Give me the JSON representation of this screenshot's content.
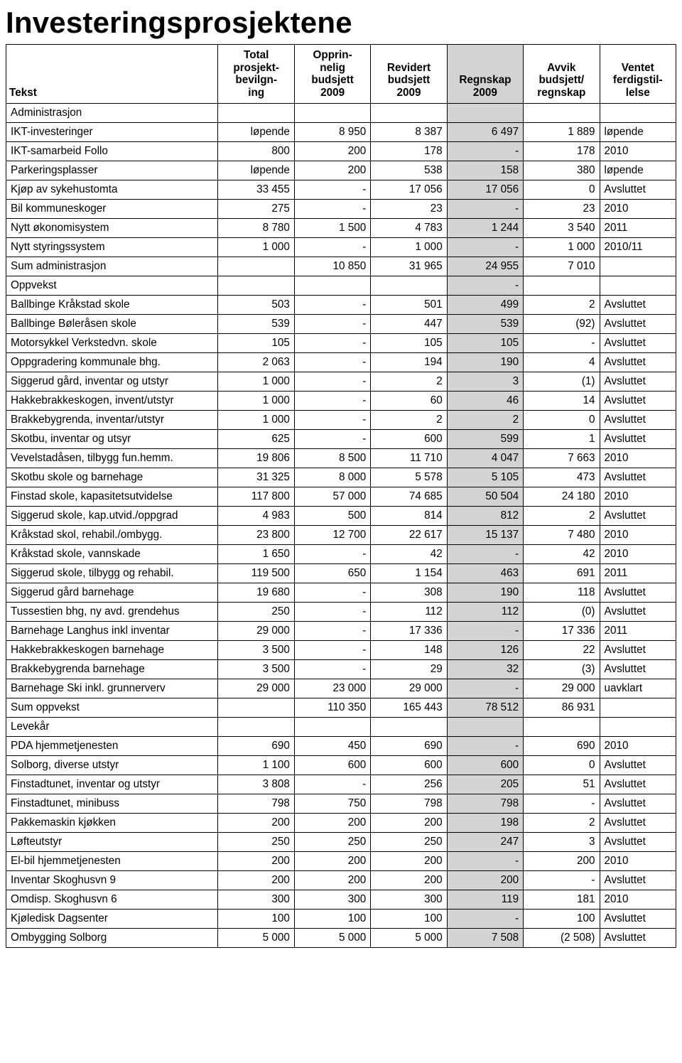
{
  "title": "Investeringsprosjektene",
  "table": {
    "background_color": "#ffffff",
    "highlight_color": "#d3d3d3",
    "border_color": "#000000",
    "font_family": "Arial",
    "font_size_pt": 11,
    "header_font_size_pt": 11,
    "title_font_size_pt": 32,
    "columns": [
      {
        "key": "tekst",
        "label": "Tekst",
        "align": "left"
      },
      {
        "key": "total",
        "label": "Total prosjekt-bevilgn-ing",
        "align": "right"
      },
      {
        "key": "oppr",
        "label": "Opprin-nelig budsjett 2009",
        "align": "right"
      },
      {
        "key": "rev",
        "label": "Revidert budsjett 2009",
        "align": "right"
      },
      {
        "key": "regn",
        "label": "Regnskap 2009",
        "align": "right",
        "highlight": true
      },
      {
        "key": "avvik",
        "label": "Avvik budsjett/ regnskap",
        "align": "right"
      },
      {
        "key": "ferdig",
        "label": "Ventet ferdigstil-lelse",
        "align": "left"
      }
    ],
    "sections": [
      {
        "name": "Administrasjon",
        "rows": [
          {
            "tekst": "IKT-investeringer",
            "total": "løpende",
            "oppr": "8 950",
            "rev": "8 387",
            "regn": "6 497",
            "avvik": "1 889",
            "ferdig": "løpende"
          },
          {
            "tekst": "IKT-samarbeid Follo",
            "total": "800",
            "oppr": "200",
            "rev": "178",
            "regn": "-",
            "avvik": "178",
            "ferdig": "2010"
          },
          {
            "tekst": "Parkeringsplasser",
            "total": "løpende",
            "oppr": "200",
            "rev": "538",
            "regn": "158",
            "avvik": "380",
            "ferdig": "løpende"
          },
          {
            "tekst": "Kjøp av sykehustomta",
            "total": "33 455",
            "oppr": "-",
            "rev": "17 056",
            "regn": "17 056",
            "avvik": "0",
            "ferdig": "Avsluttet"
          },
          {
            "tekst": "Bil kommuneskoger",
            "total": "275",
            "oppr": "-",
            "rev": "23",
            "regn": "-",
            "avvik": "23",
            "ferdig": "2010"
          },
          {
            "tekst": "Nytt økonomisystem",
            "total": "8 780",
            "oppr": "1 500",
            "rev": "4 783",
            "regn": "1 244",
            "avvik": "3 540",
            "ferdig": "2011"
          },
          {
            "tekst": "Nytt styringssystem",
            "total": "1 000",
            "oppr": "-",
            "rev": "1 000",
            "regn": "-",
            "avvik": "1 000",
            "ferdig": "2010/11"
          }
        ],
        "summary": {
          "tekst": "Sum administrasjon",
          "total": "",
          "oppr": "10 850",
          "rev": "31 965",
          "regn": "24 955",
          "avvik": "7 010",
          "ferdig": ""
        }
      },
      {
        "name": "Oppvekst",
        "name_regn_dash": true,
        "rows": [
          {
            "tekst": "Ballbinge Kråkstad skole",
            "total": "503",
            "oppr": "-",
            "rev": "501",
            "regn": "499",
            "avvik": "2",
            "ferdig": "Avsluttet"
          },
          {
            "tekst": "Ballbinge Bøleråsen skole",
            "total": "539",
            "oppr": "-",
            "rev": "447",
            "regn": "539",
            "avvik": "(92)",
            "ferdig": "Avsluttet"
          },
          {
            "tekst": "Motorsykkel Verkstedvn. skole",
            "total": "105",
            "oppr": "-",
            "rev": "105",
            "regn": "105",
            "avvik": "-",
            "ferdig": "Avsluttet"
          },
          {
            "tekst": "Oppgradering kommunale bhg.",
            "total": "2 063",
            "oppr": "-",
            "rev": "194",
            "regn": "190",
            "avvik": "4",
            "ferdig": "Avsluttet"
          },
          {
            "tekst": "Siggerud gård, inventar og utstyr",
            "total": "1 000",
            "oppr": "-",
            "rev": "2",
            "regn": "3",
            "avvik": "(1)",
            "ferdig": "Avsluttet"
          },
          {
            "tekst": "Hakkebrakkeskogen, invent/utstyr",
            "total": "1 000",
            "oppr": "-",
            "rev": "60",
            "regn": "46",
            "avvik": "14",
            "ferdig": "Avsluttet"
          },
          {
            "tekst": "Brakkebygrenda, inventar/utstyr",
            "total": "1 000",
            "oppr": "-",
            "rev": "2",
            "regn": "2",
            "avvik": "0",
            "ferdig": "Avsluttet"
          },
          {
            "tekst": "Skotbu, inventar og utsyr",
            "total": "625",
            "oppr": "-",
            "rev": "600",
            "regn": "599",
            "avvik": "1",
            "ferdig": "Avsluttet"
          },
          {
            "tekst": "Vevelstadåsen, tilbygg fun.hemm.",
            "total": "19 806",
            "oppr": "8 500",
            "rev": "11 710",
            "regn": "4 047",
            "avvik": "7 663",
            "ferdig": "2010"
          },
          {
            "tekst": "Skotbu skole og barnehage",
            "total": "31 325",
            "oppr": "8 000",
            "rev": "5 578",
            "regn": "5 105",
            "avvik": "473",
            "ferdig": "Avsluttet"
          },
          {
            "tekst": "Finstad skole, kapasitetsutvidelse",
            "total": "117 800",
            "oppr": "57 000",
            "rev": "74 685",
            "regn": "50 504",
            "avvik": "24 180",
            "ferdig": "2010"
          },
          {
            "tekst": "Siggerud skole, kap.utvid./oppgrad",
            "total": "4 983",
            "oppr": "500",
            "rev": "814",
            "regn": "812",
            "avvik": "2",
            "ferdig": "Avsluttet"
          },
          {
            "tekst": "Kråkstad skol, rehabil./ombygg.",
            "total": "23 800",
            "oppr": "12 700",
            "rev": "22 617",
            "regn": "15 137",
            "avvik": "7 480",
            "ferdig": "2010"
          },
          {
            "tekst": "Kråkstad skole, vannskade",
            "total": "1 650",
            "oppr": "-",
            "rev": "42",
            "regn": "-",
            "avvik": "42",
            "ferdig": "2010"
          },
          {
            "tekst": "Siggerud skole, tilbygg og rehabil.",
            "total": "119 500",
            "oppr": "650",
            "rev": "1 154",
            "regn": "463",
            "avvik": "691",
            "ferdig": "2011"
          },
          {
            "tekst": "Siggerud gård barnehage",
            "total": "19 680",
            "oppr": "-",
            "rev": "308",
            "regn": "190",
            "avvik": "118",
            "ferdig": "Avsluttet"
          },
          {
            "tekst": "Tussestien bhg, ny avd. grendehus",
            "total": "250",
            "oppr": "-",
            "rev": "112",
            "regn": "112",
            "avvik": "(0)",
            "ferdig": "Avsluttet"
          },
          {
            "tekst": "Barnehage Langhus inkl inventar",
            "total": "29 000",
            "oppr": "-",
            "rev": "17 336",
            "regn": "-",
            "avvik": "17 336",
            "ferdig": "2011"
          },
          {
            "tekst": "Hakkebrakkeskogen barnehage",
            "total": "3 500",
            "oppr": "-",
            "rev": "148",
            "regn": "126",
            "avvik": "22",
            "ferdig": "Avsluttet"
          },
          {
            "tekst": "Brakkebygrenda barnehage",
            "total": "3 500",
            "oppr": "-",
            "rev": "29",
            "regn": "32",
            "avvik": "(3)",
            "ferdig": "Avsluttet"
          },
          {
            "tekst": "Barnehage Ski inkl. grunnerverv",
            "total": "29 000",
            "oppr": "23 000",
            "rev": "29 000",
            "regn": "-",
            "avvik": "29 000",
            "ferdig": "uavklart"
          }
        ],
        "summary": {
          "tekst": "Sum oppvekst",
          "total": "",
          "oppr": "110 350",
          "rev": "165 443",
          "regn": "78 512",
          "avvik": "86 931",
          "ferdig": ""
        }
      },
      {
        "name": "Levekår",
        "rows": [
          {
            "tekst": "PDA hjemmetjenesten",
            "total": "690",
            "oppr": "450",
            "rev": "690",
            "regn": "-",
            "avvik": "690",
            "ferdig": "2010"
          },
          {
            "tekst": "Solborg, diverse utstyr",
            "total": "1 100",
            "oppr": "600",
            "rev": "600",
            "regn": "600",
            "avvik": "0",
            "ferdig": "Avsluttet"
          },
          {
            "tekst": "Finstadtunet, inventar og utstyr",
            "total": "3 808",
            "oppr": "-",
            "rev": "256",
            "regn": "205",
            "avvik": "51",
            "ferdig": "Avsluttet"
          },
          {
            "tekst": "Finstadtunet, minibuss",
            "total": "798",
            "oppr": "750",
            "rev": "798",
            "regn": "798",
            "avvik": "-",
            "ferdig": "Avsluttet"
          },
          {
            "tekst": "Pakkemaskin kjøkken",
            "total": "200",
            "oppr": "200",
            "rev": "200",
            "regn": "198",
            "avvik": "2",
            "ferdig": "Avsluttet"
          },
          {
            "tekst": "Løfteutstyr",
            "total": "250",
            "oppr": "250",
            "rev": "250",
            "regn": "247",
            "avvik": "3",
            "ferdig": "Avsluttet"
          },
          {
            "tekst": "El-bil hjemmetjenesten",
            "total": "200",
            "oppr": "200",
            "rev": "200",
            "regn": "-",
            "avvik": "200",
            "ferdig": "2010"
          },
          {
            "tekst": "Inventar Skoghusvn 9",
            "total": "200",
            "oppr": "200",
            "rev": "200",
            "regn": "200",
            "avvik": "-",
            "ferdig": "Avsluttet"
          },
          {
            "tekst": "Omdisp. Skoghusvn 6",
            "total": "300",
            "oppr": "300",
            "rev": "300",
            "regn": "119",
            "avvik": "181",
            "ferdig": "2010"
          },
          {
            "tekst": "Kjøledisk Dagsenter",
            "total": "100",
            "oppr": "100",
            "rev": "100",
            "regn": "-",
            "avvik": "100",
            "ferdig": "Avsluttet"
          },
          {
            "tekst": "Ombygging Solborg",
            "total": "5 000",
            "oppr": "5 000",
            "rev": "5 000",
            "regn": "7 508",
            "avvik": "(2 508)",
            "ferdig": "Avsluttet"
          }
        ]
      }
    ]
  }
}
